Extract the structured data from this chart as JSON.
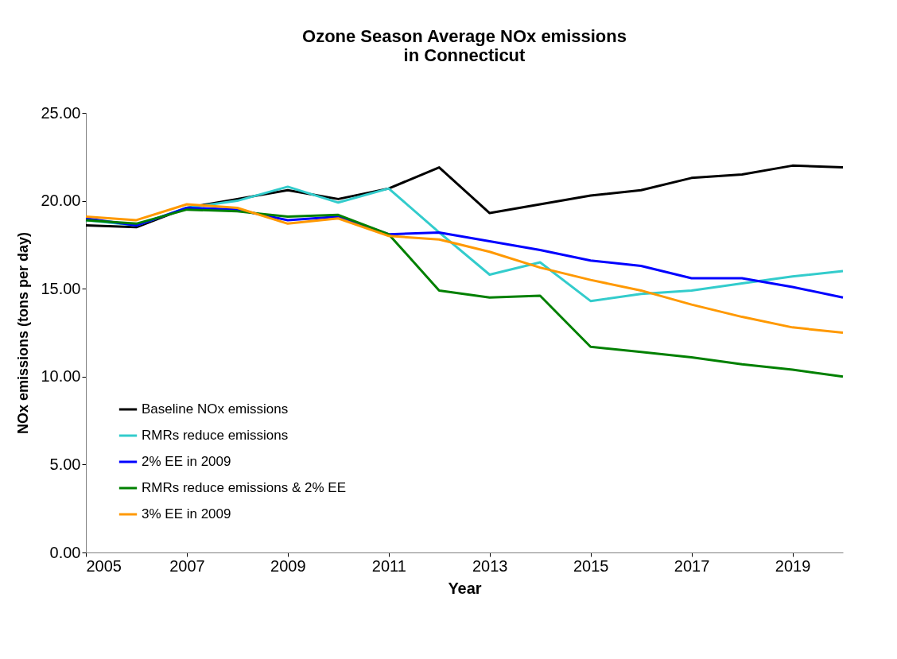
{
  "chart_data": {
    "type": "line",
    "title": "Ozone Season Average NOx emissions\nin Connecticut",
    "xlabel": "Year",
    "ylabel": "NOx emissions (tons per day)",
    "x": [
      2005,
      2006,
      2007,
      2008,
      2009,
      2010,
      2011,
      2012,
      2013,
      2014,
      2015,
      2016,
      2017,
      2018,
      2019,
      2020
    ],
    "xlim": [
      2005,
      2020
    ],
    "xticks": [
      2005,
      2007,
      2009,
      2011,
      2013,
      2015,
      2017,
      2019
    ],
    "ylim": [
      0,
      25
    ],
    "yticks": [
      {
        "value": 0,
        "label": "0.00"
      },
      {
        "value": 5,
        "label": "5.00"
      },
      {
        "value": 10,
        "label": "10.00"
      },
      {
        "value": 15,
        "label": "15.00"
      },
      {
        "value": 20,
        "label": "20.00"
      },
      {
        "value": 25,
        "label": "25.00"
      }
    ],
    "grid": false,
    "legend": "bottom left",
    "marker": "none",
    "line_style": "solid",
    "series": [
      {
        "name": "Baseline NOx emissions",
        "color": "#000000",
        "values": [
          18.6,
          18.5,
          19.6,
          20.1,
          20.6,
          20.1,
          20.7,
          21.9,
          19.3,
          19.8,
          20.3,
          20.6,
          21.3,
          21.5,
          22.0,
          21.9
        ]
      },
      {
        "name": "RMRs reduce emissions",
        "color": "#33cccc",
        "values": [
          18.9,
          18.6,
          19.6,
          20.0,
          20.8,
          19.9,
          20.7,
          18.2,
          15.8,
          16.5,
          14.3,
          14.7,
          14.9,
          15.3,
          15.7,
          16.0
        ]
      },
      {
        "name": "2% EE in 2009",
        "color": "#0000ff",
        "values": [
          19.0,
          18.6,
          19.6,
          19.5,
          18.9,
          19.1,
          18.1,
          18.2,
          17.7,
          17.2,
          16.6,
          16.3,
          15.6,
          15.6,
          15.1,
          14.5
        ]
      },
      {
        "name": "RMRs reduce emissions & 2% EE",
        "color": "#008000",
        "values": [
          18.9,
          18.7,
          19.5,
          19.4,
          19.1,
          19.2,
          18.1,
          14.9,
          14.5,
          14.6,
          11.7,
          11.4,
          11.1,
          10.7,
          10.4,
          10.0
        ]
      },
      {
        "name": "3% EE in 2009",
        "color": "#ff9900",
        "values": [
          19.1,
          18.9,
          19.8,
          19.6,
          18.7,
          19.0,
          18.0,
          17.8,
          17.1,
          16.2,
          15.5,
          14.9,
          14.1,
          13.4,
          12.8,
          12.5
        ]
      }
    ]
  }
}
